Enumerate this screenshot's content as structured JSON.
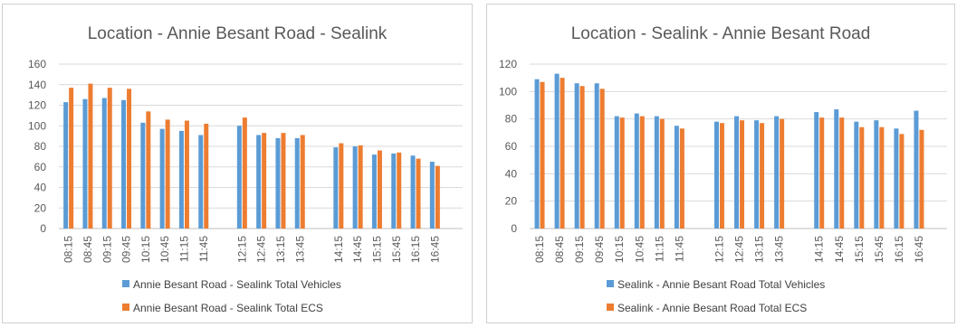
{
  "colors": {
    "vehicles": "#5b9bd5",
    "ecs": "#ed7d31",
    "grid": "#d9d9d9",
    "axis": "#bfbfbf"
  },
  "chart_data": [
    {
      "type": "bar",
      "title": "Location - Annie Besant Road - Sealink",
      "xlabel": "",
      "ylabel": "",
      "ylim": [
        0,
        160
      ],
      "yticks": [
        0,
        20,
        40,
        60,
        80,
        100,
        120,
        140,
        160
      ],
      "grid": true,
      "legend_position": "bottom",
      "categories": [
        "08:15",
        "08:45",
        "09:15",
        "09:45",
        "10:15",
        "10:45",
        "11:15",
        "11:45",
        "",
        "12:15",
        "12:45",
        "13:15",
        "13:45",
        "",
        "14:15",
        "14:45",
        "15:15",
        "15:45",
        "16:15",
        "16:45"
      ],
      "series": [
        {
          "name": "Annie Besant Road - Sealink Total Vehicles",
          "color": "#5b9bd5",
          "values": [
            123,
            126,
            127,
            125,
            103,
            97,
            95,
            91,
            null,
            100,
            91,
            88,
            88,
            null,
            79,
            80,
            72,
            73,
            71,
            65
          ]
        },
        {
          "name": "Annie Besant Road - Sealink Total ECS",
          "color": "#ed7d31",
          "values": [
            137,
            141,
            137,
            136,
            114,
            106,
            105,
            102,
            null,
            108,
            93,
            93,
            91,
            null,
            83,
            81,
            76,
            74,
            68,
            61
          ]
        }
      ]
    },
    {
      "type": "bar",
      "title": "Location - Sealink - Annie Besant Road",
      "xlabel": "",
      "ylabel": "",
      "ylim": [
        0,
        120
      ],
      "yticks": [
        0,
        20,
        40,
        60,
        80,
        100,
        120
      ],
      "grid": true,
      "legend_position": "bottom",
      "categories": [
        "08:15",
        "08:45",
        "09:15",
        "09:45",
        "10:15",
        "10:45",
        "11:15",
        "11:45",
        "",
        "12:15",
        "12:45",
        "13:15",
        "13:45",
        "",
        "14:15",
        "14:45",
        "15:15",
        "15:45",
        "16:15",
        "16:45"
      ],
      "series": [
        {
          "name": "Sealink - Annie Besant Road Total Vehicles",
          "color": "#5b9bd5",
          "values": [
            109,
            113,
            106,
            106,
            82,
            84,
            82,
            75,
            null,
            78,
            82,
            79,
            82,
            null,
            85,
            87,
            78,
            79,
            73,
            86
          ]
        },
        {
          "name": "Sealink - Annie Besant Road Total ECS",
          "color": "#ed7d31",
          "values": [
            107,
            110,
            104,
            102,
            81,
            82,
            80,
            73,
            null,
            77,
            79,
            77,
            80,
            null,
            81,
            81,
            74,
            74,
            69,
            72
          ]
        }
      ]
    }
  ]
}
